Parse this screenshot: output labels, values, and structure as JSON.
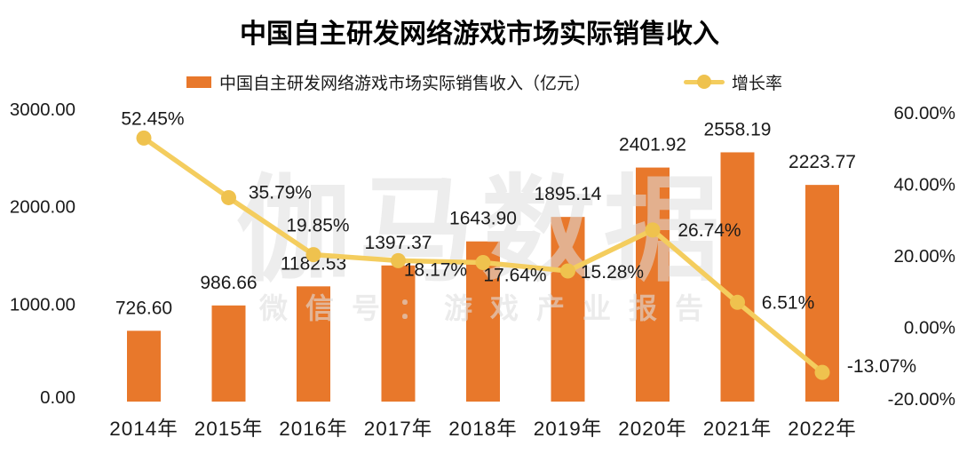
{
  "title": "中国自主研发网络游戏市场实际销售收入",
  "legend": {
    "bar_label": "中国自主研发网络游戏市场实际销售收入（亿元）",
    "line_label": "增长率"
  },
  "watermark": {
    "big": "伽马数据",
    "small": "微信号：游戏产业报告"
  },
  "colors": {
    "bar": "#E8782B",
    "line": "#F4CD5E",
    "dot": "#EFC24E",
    "text": "#1A1A1A",
    "watermark": "#DFDFDF"
  },
  "chart_data": {
    "type": "bar-line-combo",
    "title": "中国自主研发网络游戏市场实际销售收入",
    "categories": [
      "2014年",
      "2015年",
      "2016年",
      "2017年",
      "2018年",
      "2019年",
      "2020年",
      "2021年",
      "2022年"
    ],
    "series": [
      {
        "name": "中国自主研发网络游戏市场实际销售收入（亿元）",
        "type": "bar",
        "axis": "left",
        "color": "#E8782B",
        "values": [
          726.6,
          986.66,
          1182.53,
          1397.37,
          1643.9,
          1895.14,
          2401.92,
          2558.19,
          2223.77
        ],
        "labels": [
          "726.60",
          "986.66",
          "1182.53",
          "1397.37",
          "1643.90",
          "1895.14",
          "2401.92",
          "2558.19",
          "2223.77"
        ]
      },
      {
        "name": "增长率",
        "type": "line",
        "axis": "right",
        "color": "#F4CD5E",
        "values": [
          52.45,
          35.79,
          19.85,
          18.17,
          17.64,
          15.28,
          26.74,
          6.51,
          -13.07
        ],
        "labels": [
          "52.45%",
          "35.79%",
          "19.85%",
          "18.17%",
          "17.64%",
          "15.28%",
          "26.74%",
          "6.51%",
          "-13.07%"
        ]
      }
    ],
    "left_axis": {
      "min": 0,
      "max": 3000,
      "ticks": [
        {
          "label": "3000.00",
          "value": 3000
        },
        {
          "label": "2000.00",
          "value": 2000
        },
        {
          "label": "1000.00",
          "value": 1000
        },
        {
          "label": "0.00",
          "value": 0
        }
      ]
    },
    "right_axis": {
      "min": -20,
      "max": 60,
      "ticks": [
        {
          "label": "60.00%",
          "value": 60
        },
        {
          "label": "40.00%",
          "value": 40
        },
        {
          "label": "20.00%",
          "value": 20
        },
        {
          "label": "0.00%",
          "value": 0
        },
        {
          "label": "-20.00%",
          "value": -20
        }
      ]
    },
    "grid": false,
    "legend_position": "top"
  }
}
